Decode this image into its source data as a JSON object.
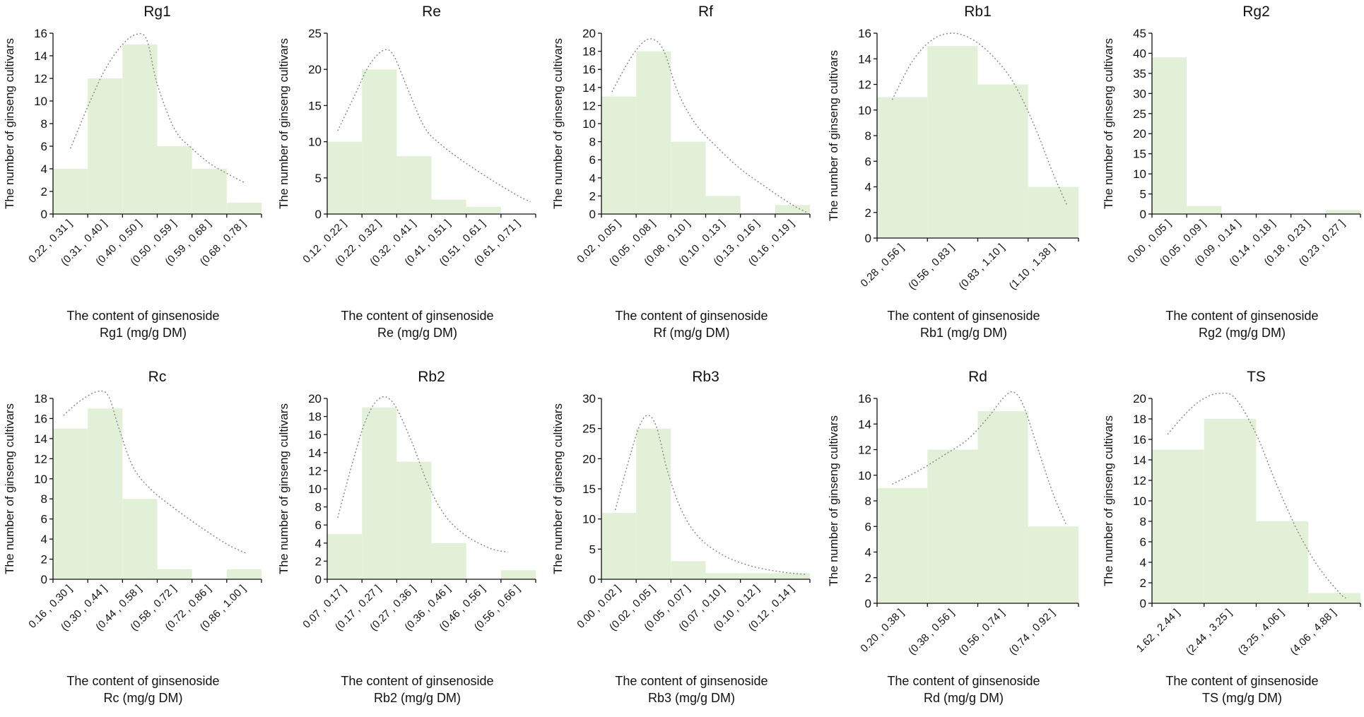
{
  "chart_data": [
    {
      "type": "bar",
      "title": "Rg1",
      "categories": [
        "0.22 , 0.31 ]",
        "(0.31 , 0.40 ]",
        "(0.40 , 0.50 ]",
        "(0.50 , 0.59 ]",
        "(0.59 , 0.68 ]",
        "(0.68 , 0.78 ]"
      ],
      "values": [
        4,
        12,
        15,
        6,
        4,
        1
      ],
      "ylim": [
        0,
        16
      ],
      "yticks": [
        0,
        2,
        4,
        6,
        8,
        10,
        12,
        14,
        16
      ],
      "ylabel": "The number of ginseng cultivars",
      "xlabel": [
        "The content of ginsenoside",
        "Rg1 (mg/g DM)"
      ],
      "fit_curve": [
        [
          0.5,
          5.8
        ],
        [
          1.0,
          9.5
        ],
        [
          1.5,
          12.8
        ],
        [
          2.0,
          15.0
        ],
        [
          2.4,
          15.9
        ],
        [
          2.7,
          15.4
        ],
        [
          3.0,
          11.5
        ],
        [
          3.5,
          7.5
        ],
        [
          4.0,
          5.8
        ],
        [
          4.5,
          4.5
        ],
        [
          5.0,
          3.6
        ],
        [
          5.5,
          2.8
        ]
      ]
    },
    {
      "type": "bar",
      "title": "Re",
      "categories": [
        "0.12 , 0.22 ]",
        "(0.22 , 0.32 ]",
        "(0.32 , 0.41 ]",
        "(0.41 , 0.51 ]",
        "(0.51 , 0.61 ]",
        "(0.61 , 0.71 ]"
      ],
      "values": [
        10,
        20,
        8,
        2,
        1,
        0
      ],
      "ylim": [
        0,
        25
      ],
      "yticks": [
        0,
        5,
        10,
        15,
        20,
        25
      ],
      "ylabel": "The number of ginseng cultivars",
      "xlabel": [
        "The content of ginsenoside",
        "Re (mg/g DM)"
      ],
      "fit_curve": [
        [
          0.3,
          11.5
        ],
        [
          0.8,
          16.5
        ],
        [
          1.2,
          20.5
        ],
        [
          1.6,
          22.6
        ],
        [
          1.9,
          22.0
        ],
        [
          2.3,
          17.5
        ],
        [
          2.8,
          12.0
        ],
        [
          3.3,
          9.5
        ],
        [
          4.0,
          7.0
        ],
        [
          4.8,
          4.5
        ],
        [
          5.5,
          2.5
        ],
        [
          5.85,
          1.7
        ]
      ]
    },
    {
      "type": "bar",
      "title": "Rf",
      "categories": [
        "0.02 , 0.05 ]",
        "(0.05 , 0.08 ]",
        "(0.08 , 0.10 ]",
        "(0.10 , 0.13 ]",
        "(0.13 , 0.16 ]",
        "(0.16 , 0.19 ]"
      ],
      "values": [
        13,
        18,
        8,
        2,
        0,
        1
      ],
      "ylim": [
        0,
        20
      ],
      "yticks": [
        0,
        2,
        4,
        6,
        8,
        10,
        12,
        14,
        16,
        18,
        20
      ],
      "ylabel": "The number of ginseng cultivars",
      "xlabel": [
        "The content of ginsenoside",
        "Rf (mg/g DM)"
      ],
      "fit_curve": [
        [
          0.3,
          13.5
        ],
        [
          0.8,
          17.0
        ],
        [
          1.2,
          19.0
        ],
        [
          1.5,
          19.3
        ],
        [
          1.8,
          18.0
        ],
        [
          2.2,
          13.5
        ],
        [
          2.7,
          10.0
        ],
        [
          3.3,
          7.5
        ],
        [
          4.0,
          5.0
        ],
        [
          4.8,
          2.8
        ],
        [
          5.5,
          1.0
        ],
        [
          5.9,
          0.2
        ]
      ]
    },
    {
      "type": "bar",
      "title": "Rb1",
      "categories": [
        "0.28 , 0.56 ]",
        "(0.56 , 0.83 ]",
        "(0.83 , 1.10 ]",
        "(1.10 , 1.38 ]"
      ],
      "values": [
        11,
        15,
        12,
        4
      ],
      "ylim": [
        0,
        16
      ],
      "yticks": [
        0,
        2,
        4,
        6,
        8,
        10,
        12,
        14,
        16
      ],
      "ylabel": "The number of ginseng cultivars",
      "xlabel": [
        "The content of ginsenoside",
        "Rb1 (mg/g DM)"
      ],
      "fit_curve": [
        [
          0.3,
          10.8
        ],
        [
          0.7,
          13.8
        ],
        [
          1.1,
          15.5
        ],
        [
          1.5,
          16.0
        ],
        [
          1.9,
          15.5
        ],
        [
          2.3,
          14.2
        ],
        [
          2.7,
          12.2
        ],
        [
          3.1,
          9.0
        ],
        [
          3.5,
          5.0
        ],
        [
          3.78,
          2.5
        ]
      ]
    },
    {
      "type": "bar",
      "title": "Rg2",
      "categories": [
        "0.00 , 0.05 ]",
        "(0.05 , 0.09 ]",
        "(0.09 , 0.14 ]",
        "(0.14 , 0.18 ]",
        "(0.18 , 0.23 ]",
        "(0.23 , 0.27 ]"
      ],
      "values": [
        39,
        2,
        0,
        0,
        0,
        1
      ],
      "ylim": [
        0,
        45
      ],
      "yticks": [
        0,
        5,
        10,
        15,
        20,
        25,
        30,
        35,
        40,
        45
      ],
      "ylabel": "The number of ginseng cultivars",
      "xlabel": [
        "The content of ginsenoside",
        "Rg2 (mg/g DM)"
      ],
      "fit_curve": []
    },
    {
      "type": "bar",
      "title": "Rc",
      "categories": [
        "0.16 , 0.30 ]",
        "(0.30 , 0.44 ]",
        "(0.44 , 0.58 ]",
        "(0.58 , 0.72 ]",
        "(0.72 , 0.86 ]",
        "(0.86 , 1.00 ]"
      ],
      "values": [
        15,
        17,
        8,
        1,
        0,
        1
      ],
      "ylim": [
        0,
        18
      ],
      "yticks": [
        0,
        2,
        4,
        6,
        8,
        10,
        12,
        14,
        16,
        18
      ],
      "ylabel": "The number of ginseng cultivars",
      "xlabel": [
        "The content of ginsenoside",
        "Rc (mg/g DM)"
      ],
      "fit_curve": [
        [
          0.3,
          16.3
        ],
        [
          0.8,
          17.8
        ],
        [
          1.3,
          18.7
        ],
        [
          1.6,
          18.2
        ],
        [
          1.9,
          15.0
        ],
        [
          2.3,
          11.2
        ],
        [
          2.8,
          9.0
        ],
        [
          3.4,
          7.3
        ],
        [
          4.2,
          5.3
        ],
        [
          5.0,
          3.5
        ],
        [
          5.55,
          2.6
        ]
      ]
    },
    {
      "type": "bar",
      "title": "Rb2",
      "categories": [
        "0.07 , 0.17 ]",
        "(0.17 , 0.27 ]",
        "(0.27 , 0.36 ]",
        "(0.36 , 0.46 ]",
        "(0.46 , 0.56 ]",
        "(0.56 , 0.66 ]"
      ],
      "values": [
        5,
        19,
        13,
        4,
        0,
        1
      ],
      "ylim": [
        0,
        20
      ],
      "yticks": [
        0,
        2,
        4,
        6,
        8,
        10,
        12,
        14,
        16,
        18,
        20
      ],
      "ylabel": "The number of ginseng cultivars",
      "xlabel": [
        "The content of ginsenoside",
        "Rb2 (mg/g DM)"
      ],
      "fit_curve": [
        [
          0.3,
          6.8
        ],
        [
          0.7,
          12.5
        ],
        [
          1.1,
          17.5
        ],
        [
          1.5,
          20.0
        ],
        [
          1.9,
          19.5
        ],
        [
          2.4,
          15.5
        ],
        [
          2.9,
          10.5
        ],
        [
          3.4,
          7.0
        ],
        [
          4.0,
          4.8
        ],
        [
          4.7,
          3.4
        ],
        [
          5.2,
          3.0
        ]
      ]
    },
    {
      "type": "bar",
      "title": "Rb3",
      "categories": [
        "0.00 , 0.02 ]",
        "(0.02 , 0.05 ]",
        "(0.05 , 0.07 ]",
        "(0.07 , 0.10 ]",
        "(0.10 , 0.12 ]",
        "(0.12 , 0.14 ]"
      ],
      "values": [
        11,
        25,
        3,
        1,
        1,
        1
      ],
      "ylim": [
        0,
        30
      ],
      "yticks": [
        0,
        5,
        10,
        15,
        20,
        25,
        30
      ],
      "ylabel": "The number of ginseng cultivars",
      "xlabel": [
        "The content of ginsenoside",
        "Rb3 (mg/g DM)"
      ],
      "fit_curve": [
        [
          0.4,
          11.5
        ],
        [
          0.8,
          20.0
        ],
        [
          1.1,
          25.5
        ],
        [
          1.35,
          27.2
        ],
        [
          1.6,
          25.0
        ],
        [
          1.9,
          18.0
        ],
        [
          2.3,
          11.5
        ],
        [
          2.8,
          7.0
        ],
        [
          3.5,
          4.0
        ],
        [
          4.3,
          2.2
        ],
        [
          5.2,
          1.2
        ],
        [
          5.9,
          0.8
        ]
      ]
    },
    {
      "type": "bar",
      "title": "Rd",
      "categories": [
        "0.20 , 0.38 ]",
        "(0.38 , 0.56 ]",
        "(0.56 , 0.74 ]",
        "(0.74 , 0.92 ]"
      ],
      "values": [
        9,
        12,
        15,
        6
      ],
      "ylim": [
        0,
        16
      ],
      "yticks": [
        0,
        2,
        4,
        6,
        8,
        10,
        12,
        14,
        16
      ],
      "ylabel": "The number of ginseng cultivars",
      "xlabel": [
        "The content of ginsenoside",
        "Rd (mg/g DM)"
      ],
      "fit_curve": [
        [
          0.3,
          9.3
        ],
        [
          0.8,
          10.3
        ],
        [
          1.3,
          11.5
        ],
        [
          1.8,
          12.8
        ],
        [
          2.2,
          14.5
        ],
        [
          2.5,
          16.0
        ],
        [
          2.7,
          16.5
        ],
        [
          2.9,
          15.5
        ],
        [
          3.2,
          12.0
        ],
        [
          3.5,
          8.5
        ],
        [
          3.75,
          6.2
        ]
      ]
    },
    {
      "type": "bar",
      "title": "TS",
      "categories": [
        "1.62 , 2.44 ]",
        "(2.44 , 3.25 ]",
        "(3.25 , 4.06 ]",
        "(4.06 , 4.88 ]"
      ],
      "values": [
        15,
        18,
        8,
        1
      ],
      "ylim": [
        0,
        20
      ],
      "yticks": [
        0,
        2,
        4,
        6,
        8,
        10,
        12,
        14,
        16,
        18,
        20
      ],
      "ylabel": "The number of ginseng cultivars",
      "xlabel": [
        "The content of ginsenoside",
        "TS (mg/g DM)"
      ],
      "fit_curve": [
        [
          0.3,
          16.5
        ],
        [
          0.7,
          18.8
        ],
        [
          1.0,
          20.0
        ],
        [
          1.3,
          20.5
        ],
        [
          1.6,
          20.0
        ],
        [
          2.0,
          16.5
        ],
        [
          2.4,
          11.5
        ],
        [
          2.8,
          7.0
        ],
        [
          3.2,
          3.5
        ],
        [
          3.6,
          1.0
        ],
        [
          3.72,
          0.5
        ]
      ]
    }
  ]
}
